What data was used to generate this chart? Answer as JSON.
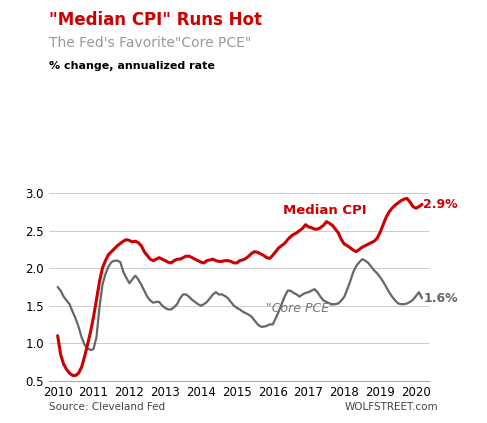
{
  "title1": "\"Median CPI\" Runs Hot",
  "title2": "The Fed's Favorite\"Core PCE\"",
  "ylabel": "% change, annualized rate",
  "source_left": "Source: Cleveland Fed",
  "source_right": "WOLFSTREET.com",
  "ylim": [
    0.5,
    3.15
  ],
  "yticks": [
    0.5,
    1.0,
    1.5,
    2.0,
    2.5,
    3.0
  ],
  "xlim": [
    2009.75,
    2020.35
  ],
  "title1_color": "#cc0000",
  "title2_color": "#999999",
  "median_cpi_color": "#cc0000",
  "core_pce_color": "#666666",
  "median_cpi_label": "Median CPI",
  "core_pce_label": "\"Core PCE\"",
  "median_cpi_end_label": "2.9%",
  "core_pce_end_label": "1.6%",
  "median_cpi_x": [
    2010.0,
    2010.083,
    2010.167,
    2010.25,
    2010.333,
    2010.417,
    2010.5,
    2010.583,
    2010.667,
    2010.75,
    2010.833,
    2010.917,
    2011.0,
    2011.083,
    2011.167,
    2011.25,
    2011.333,
    2011.417,
    2011.5,
    2011.583,
    2011.667,
    2011.75,
    2011.833,
    2011.917,
    2012.0,
    2012.083,
    2012.167,
    2012.25,
    2012.333,
    2012.417,
    2012.5,
    2012.583,
    2012.667,
    2012.75,
    2012.833,
    2012.917,
    2013.0,
    2013.083,
    2013.167,
    2013.25,
    2013.333,
    2013.417,
    2013.5,
    2013.583,
    2013.667,
    2013.75,
    2013.833,
    2013.917,
    2014.0,
    2014.083,
    2014.167,
    2014.25,
    2014.333,
    2014.417,
    2014.5,
    2014.583,
    2014.667,
    2014.75,
    2014.833,
    2014.917,
    2015.0,
    2015.083,
    2015.167,
    2015.25,
    2015.333,
    2015.417,
    2015.5,
    2015.583,
    2015.667,
    2015.75,
    2015.833,
    2015.917,
    2016.0,
    2016.083,
    2016.167,
    2016.25,
    2016.333,
    2016.417,
    2016.5,
    2016.583,
    2016.667,
    2016.75,
    2016.833,
    2016.917,
    2017.0,
    2017.083,
    2017.167,
    2017.25,
    2017.333,
    2017.417,
    2017.5,
    2017.583,
    2017.667,
    2017.75,
    2017.833,
    2017.917,
    2018.0,
    2018.083,
    2018.167,
    2018.25,
    2018.333,
    2018.417,
    2018.5,
    2018.583,
    2018.667,
    2018.75,
    2018.833,
    2018.917,
    2019.0,
    2019.083,
    2019.167,
    2019.25,
    2019.333,
    2019.417,
    2019.5,
    2019.583,
    2019.667,
    2019.75,
    2019.833,
    2019.917,
    2020.0,
    2020.083,
    2020.167
  ],
  "median_cpi_y": [
    1.1,
    0.85,
    0.72,
    0.65,
    0.6,
    0.57,
    0.57,
    0.6,
    0.68,
    0.82,
    0.98,
    1.15,
    1.35,
    1.58,
    1.82,
    2.0,
    2.1,
    2.18,
    2.22,
    2.26,
    2.3,
    2.33,
    2.36,
    2.38,
    2.37,
    2.35,
    2.36,
    2.34,
    2.3,
    2.22,
    2.17,
    2.12,
    2.1,
    2.12,
    2.14,
    2.12,
    2.1,
    2.08,
    2.07,
    2.1,
    2.12,
    2.12,
    2.14,
    2.16,
    2.16,
    2.14,
    2.12,
    2.1,
    2.08,
    2.07,
    2.1,
    2.11,
    2.12,
    2.1,
    2.09,
    2.09,
    2.1,
    2.1,
    2.09,
    2.07,
    2.07,
    2.1,
    2.11,
    2.13,
    2.16,
    2.2,
    2.22,
    2.21,
    2.19,
    2.17,
    2.14,
    2.13,
    2.17,
    2.22,
    2.27,
    2.3,
    2.33,
    2.38,
    2.42,
    2.45,
    2.47,
    2.5,
    2.53,
    2.58,
    2.55,
    2.54,
    2.52,
    2.52,
    2.54,
    2.57,
    2.62,
    2.6,
    2.57,
    2.52,
    2.47,
    2.38,
    2.32,
    2.3,
    2.27,
    2.24,
    2.22,
    2.25,
    2.28,
    2.3,
    2.32,
    2.34,
    2.36,
    2.4,
    2.48,
    2.58,
    2.68,
    2.75,
    2.8,
    2.84,
    2.87,
    2.9,
    2.92,
    2.93,
    2.88,
    2.82,
    2.8,
    2.82,
    2.85
  ],
  "core_pce_x": [
    2010.0,
    2010.083,
    2010.167,
    2010.25,
    2010.333,
    2010.417,
    2010.5,
    2010.583,
    2010.667,
    2010.75,
    2010.833,
    2010.917,
    2011.0,
    2011.083,
    2011.167,
    2011.25,
    2011.333,
    2011.417,
    2011.5,
    2011.583,
    2011.667,
    2011.75,
    2011.833,
    2011.917,
    2012.0,
    2012.083,
    2012.167,
    2012.25,
    2012.333,
    2012.417,
    2012.5,
    2012.583,
    2012.667,
    2012.75,
    2012.833,
    2012.917,
    2013.0,
    2013.083,
    2013.167,
    2013.25,
    2013.333,
    2013.417,
    2013.5,
    2013.583,
    2013.667,
    2013.75,
    2013.833,
    2013.917,
    2014.0,
    2014.083,
    2014.167,
    2014.25,
    2014.333,
    2014.417,
    2014.5,
    2014.583,
    2014.667,
    2014.75,
    2014.833,
    2014.917,
    2015.0,
    2015.083,
    2015.167,
    2015.25,
    2015.333,
    2015.417,
    2015.5,
    2015.583,
    2015.667,
    2015.75,
    2015.833,
    2015.917,
    2016.0,
    2016.083,
    2016.167,
    2016.25,
    2016.333,
    2016.417,
    2016.5,
    2016.583,
    2016.667,
    2016.75,
    2016.833,
    2016.917,
    2017.0,
    2017.083,
    2017.167,
    2017.25,
    2017.333,
    2017.417,
    2017.5,
    2017.583,
    2017.667,
    2017.75,
    2017.833,
    2017.917,
    2018.0,
    2018.083,
    2018.167,
    2018.25,
    2018.333,
    2018.417,
    2018.5,
    2018.583,
    2018.667,
    2018.75,
    2018.833,
    2018.917,
    2019.0,
    2019.083,
    2019.167,
    2019.25,
    2019.333,
    2019.417,
    2019.5,
    2019.583,
    2019.667,
    2019.75,
    2019.833,
    2019.917,
    2020.0,
    2020.083,
    2020.167
  ],
  "core_pce_y": [
    1.75,
    1.7,
    1.62,
    1.57,
    1.52,
    1.42,
    1.33,
    1.22,
    1.08,
    0.98,
    0.93,
    0.91,
    0.92,
    1.08,
    1.48,
    1.78,
    1.92,
    2.02,
    2.08,
    2.1,
    2.1,
    2.08,
    1.95,
    1.87,
    1.8,
    1.85,
    1.9,
    1.85,
    1.78,
    1.7,
    1.62,
    1.57,
    1.54,
    1.55,
    1.55,
    1.5,
    1.47,
    1.45,
    1.45,
    1.48,
    1.52,
    1.6,
    1.65,
    1.65,
    1.62,
    1.58,
    1.55,
    1.52,
    1.5,
    1.52,
    1.55,
    1.6,
    1.65,
    1.68,
    1.65,
    1.65,
    1.63,
    1.6,
    1.55,
    1.5,
    1.47,
    1.45,
    1.42,
    1.4,
    1.38,
    1.35,
    1.3,
    1.25,
    1.22,
    1.22,
    1.23,
    1.25,
    1.25,
    1.33,
    1.42,
    1.52,
    1.62,
    1.7,
    1.7,
    1.67,
    1.65,
    1.62,
    1.65,
    1.67,
    1.68,
    1.7,
    1.72,
    1.68,
    1.62,
    1.57,
    1.55,
    1.53,
    1.52,
    1.52,
    1.53,
    1.57,
    1.62,
    1.72,
    1.83,
    1.95,
    2.03,
    2.08,
    2.12,
    2.1,
    2.07,
    2.02,
    1.97,
    1.93,
    1.88,
    1.82,
    1.75,
    1.68,
    1.62,
    1.57,
    1.53,
    1.52,
    1.52,
    1.53,
    1.55,
    1.58,
    1.63,
    1.68,
    1.6
  ]
}
